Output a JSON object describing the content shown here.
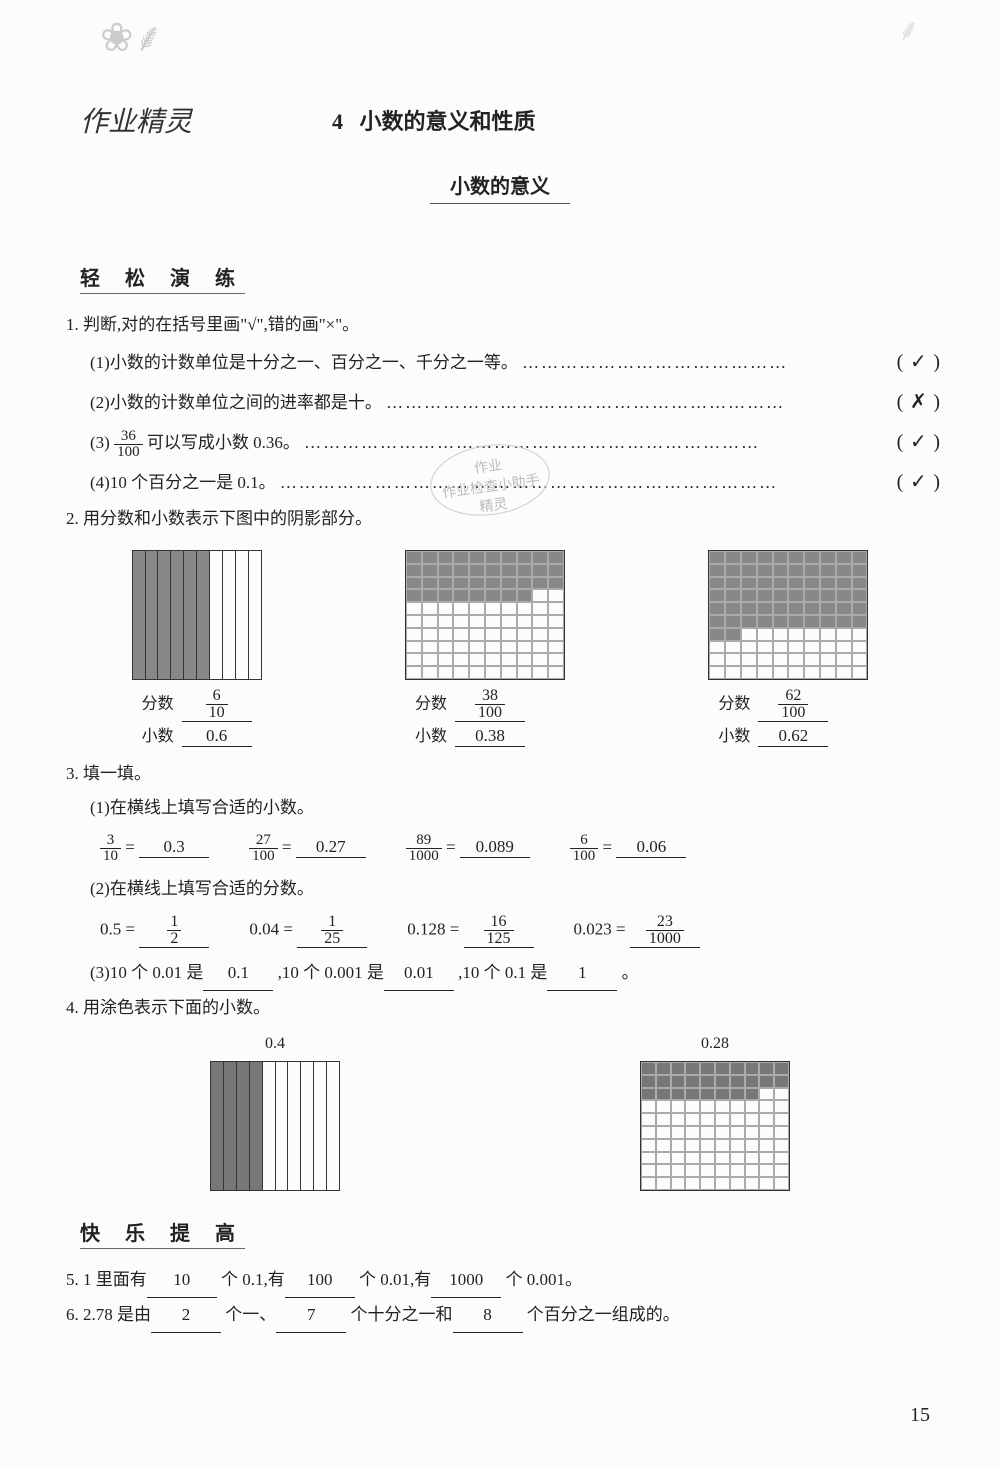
{
  "page_number": "15",
  "brand_watermark": "作业精灵",
  "stamp_text": "作业\n作业检查小助手\n精灵",
  "chapter_num": "4",
  "chapter_title": "小数的意义和性质",
  "subtitle": "小数的意义",
  "section1": "轻 松 演 练",
  "section2": "快 乐 提 高",
  "q1": {
    "stem": "1. 判断,对的在括号里画\"√\",错的画\"×\"。",
    "items": [
      {
        "text": "(1)小数的计数单位是十分之一、百分之一、千分之一等。",
        "dots": "……………………………………",
        "ans": "✓"
      },
      {
        "text": "(2)小数的计数单位之间的进率都是十。",
        "dots": "………………………………………………………",
        "ans": "✗"
      },
      {
        "text_pre": "(3)",
        "frac_n": "36",
        "frac_d": "100",
        "text_post": "可以写成小数 0.36。",
        "dots": "………………………………………………………………",
        "ans": "✓"
      },
      {
        "text": "(4)10 个百分之一是 0.1。",
        "dots": "…………………………",
        "dots2": "…………………………………………",
        "ans": "✓"
      }
    ]
  },
  "q2": {
    "stem": "2. 用分数和小数表示下图中的阴影部分。",
    "label_frac": "分数",
    "label_dec": "小数",
    "blocks": [
      {
        "type": "grid10",
        "filled": 6,
        "frac_n": "6",
        "frac_d": "10",
        "dec": "0.6"
      },
      {
        "type": "grid100",
        "filled": 38,
        "frac_n": "38",
        "frac_d": "100",
        "dec": "0.38"
      },
      {
        "type": "grid100",
        "filled": 62,
        "frac_n": "62",
        "frac_d": "100",
        "dec": "0.62"
      }
    ]
  },
  "q3": {
    "stem": "3. 填一填。",
    "s1": {
      "stem": "(1)在横线上填写合适的小数。",
      "items": [
        {
          "n": "3",
          "d": "10",
          "ans": "0.3"
        },
        {
          "n": "27",
          "d": "100",
          "ans": "0.27"
        },
        {
          "n": "89",
          "d": "1000",
          "ans": "0.089"
        },
        {
          "n": "6",
          "d": "100",
          "ans": "0.06"
        }
      ]
    },
    "s2": {
      "stem": "(2)在横线上填写合适的分数。",
      "items": [
        {
          "dec": "0.5",
          "n": "1",
          "d": "2"
        },
        {
          "dec": "0.04",
          "n": "1",
          "d": "25"
        },
        {
          "dec": "0.128",
          "n": "16",
          "d": "125"
        },
        {
          "dec": "0.023",
          "n": "23",
          "d": "1000"
        }
      ]
    },
    "s3": {
      "text_a": "(3)10 个 0.01 是",
      "ans_a": "0.1",
      "text_b": ",10 个 0.001 是",
      "ans_b": "0.01",
      "text_c": ",10 个 0.1 是",
      "ans_c": "1",
      "text_d": "。"
    }
  },
  "q4": {
    "stem": "4. 用涂色表示下面的小数。",
    "blocks": [
      {
        "label": "0.4",
        "type": "10",
        "filled": 4
      },
      {
        "label": "0.28",
        "type": "100",
        "filled": 28
      }
    ]
  },
  "q5": {
    "pre": "5. 1 里面有",
    "a": "10",
    "mid1": "个 0.1,有",
    "b": "100",
    "mid2": "个 0.01,有",
    "c": "1000",
    "post": "个 0.001。"
  },
  "q6": {
    "pre": "6. 2.78 是由",
    "a": "2",
    "mid1": "个一、",
    "b": "7",
    "mid2": "个十分之一和",
    "c": "8",
    "post": "个百分之一组成的。"
  },
  "colors": {
    "bg": "#fcfcfa",
    "text": "#222",
    "fill": "#888",
    "grid": "#aaa",
    "hw": "#333"
  }
}
